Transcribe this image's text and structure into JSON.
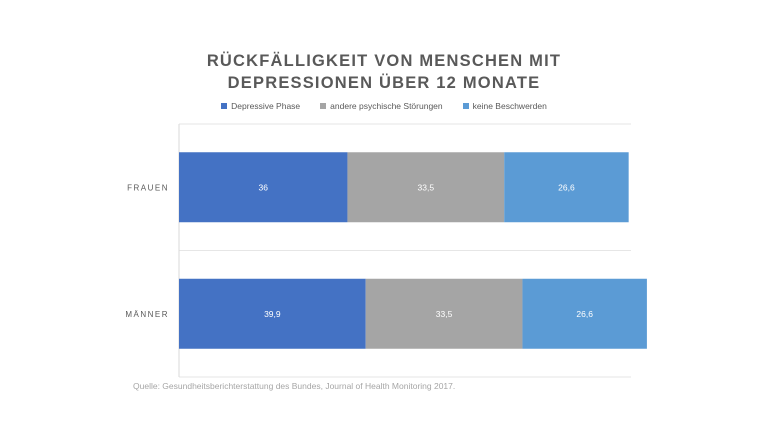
{
  "chart_data": {
    "type": "bar",
    "orientation": "horizontal",
    "stacked": true,
    "title_lines": [
      "RÜCKFÄLLIGKEIT VON MENSCHEN MIT",
      "DEPRESSIONEN ÜBER 12 MONATE"
    ],
    "categories": [
      "FRAUEN",
      "MÄNNER"
    ],
    "series": [
      {
        "name": "Depressive Phase",
        "color": "#4472c4",
        "values": [
          36,
          39.9
        ]
      },
      {
        "name": "andere psychische Störungen",
        "color": "#a5a5a5",
        "values": [
          33.5,
          33.5
        ]
      },
      {
        "name": "keine Beschwerden",
        "color": "#5b9bd5",
        "values": [
          26.6,
          26.6
        ]
      }
    ],
    "data_labels": [
      [
        "36",
        "39,9"
      ],
      [
        "33,5",
        "33,5"
      ],
      [
        "26,6",
        "26,6"
      ]
    ],
    "legend_position": "top",
    "gridlines": true,
    "xlim": [
      0,
      96.6
    ]
  },
  "source": "Quelle: Gesundheitsberichterstattung des Bundes, Journal of Health Monitoring 2017."
}
